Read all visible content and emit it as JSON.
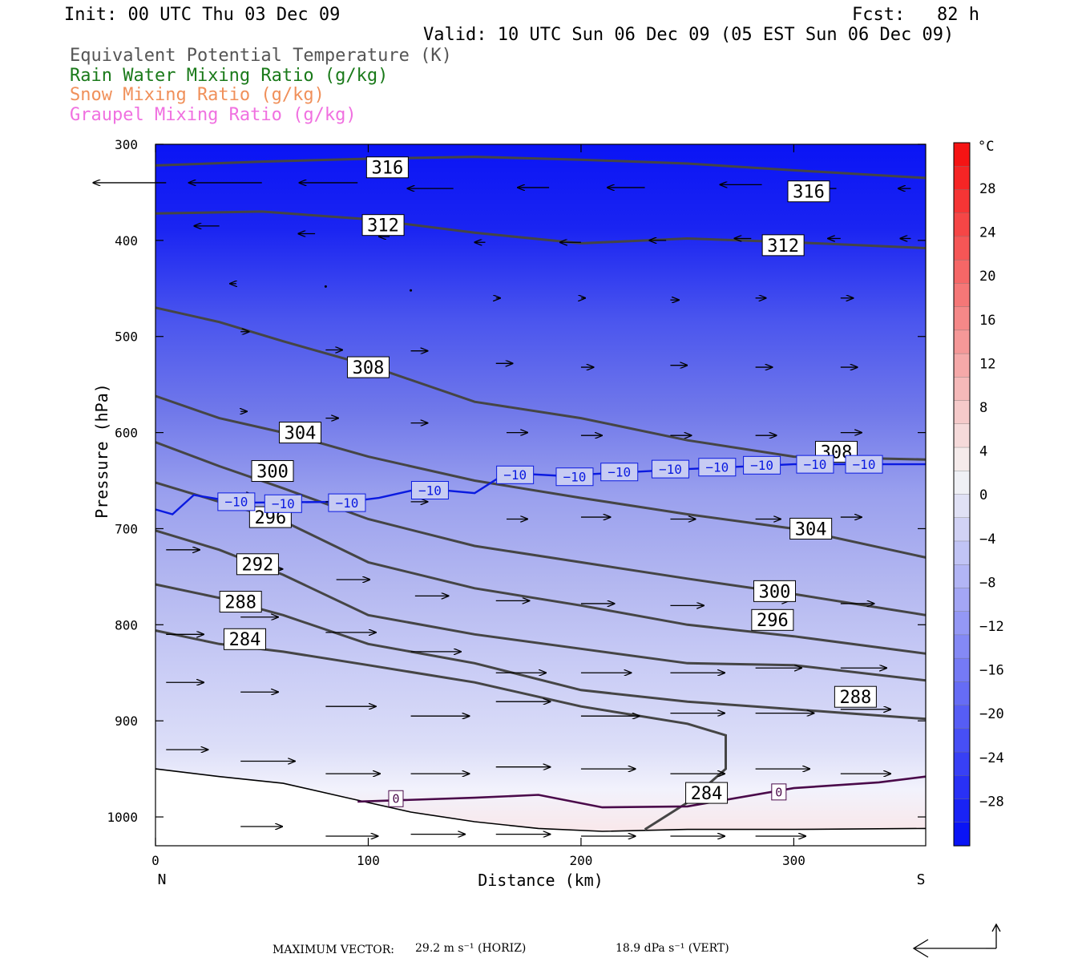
{
  "header": {
    "init": "Init: 00 UTC Thu 03 Dec 09",
    "fcst": "Fcst:   82 h",
    "valid": "Valid: 10 UTC Sun 06 Dec 09 (05 EST Sun 06 Dec 09)"
  },
  "legend": [
    {
      "label": "Equivalent Potential Temperature (K)",
      "color": "#555555"
    },
    {
      "label": "Rain Water Mixing Ratio (g/kg)",
      "color": "#1a7a1a"
    },
    {
      "label": "Snow Mixing Ratio (g/kg)",
      "color": "#f0905a"
    },
    {
      "label": "Graupel Mixing Ratio (g/kg)",
      "color": "#f070e0"
    }
  ],
  "footer": {
    "max_vector_label": "MAXIMUM VECTOR:",
    "horiz": "29.2 m s⁻¹ (HORIZ)",
    "vert": "18.9 dPa s⁻¹ (VERT)"
  },
  "chart_data": {
    "type": "contour",
    "xlabel": "Distance (km)",
    "ylabel": "Pressure (hPa)",
    "xlim": [
      0,
      362
    ],
    "ylim": [
      1030,
      300
    ],
    "xticks": [
      0,
      100,
      200,
      300
    ],
    "yticks": [
      300,
      400,
      500,
      600,
      700,
      800,
      900,
      1000
    ],
    "x_end_labels": {
      "left": "N",
      "right": "S"
    },
    "colorbar": {
      "unit": "°C",
      "ticks": [
        28,
        24,
        20,
        16,
        12,
        8,
        4,
        0,
        -4,
        -8,
        -12,
        -16,
        -20,
        -24,
        -28
      ]
    },
    "theta_e_contours": [
      {
        "level": 316,
        "points": [
          [
            0,
            322
          ],
          [
            50,
            318
          ],
          [
            100,
            315
          ],
          [
            150,
            313
          ],
          [
            200,
            316
          ],
          [
            250,
            320
          ],
          [
            300,
            327
          ],
          [
            362,
            335
          ]
        ],
        "labels": [
          [
            109,
            324
          ],
          [
            307,
            349
          ]
        ]
      },
      {
        "level": 312,
        "points": [
          [
            0,
            372
          ],
          [
            50,
            370
          ],
          [
            100,
            378
          ],
          [
            150,
            392
          ],
          [
            200,
            403
          ],
          [
            250,
            398
          ],
          [
            300,
            402
          ],
          [
            362,
            408
          ]
        ],
        "labels": [
          [
            107,
            384
          ],
          [
            295,
            405
          ]
        ]
      },
      {
        "level": 308,
        "points": [
          [
            0,
            470
          ],
          [
            30,
            485
          ],
          [
            60,
            505
          ],
          [
            100,
            530
          ],
          [
            150,
            568
          ],
          [
            200,
            585
          ],
          [
            250,
            608
          ],
          [
            300,
            625
          ],
          [
            362,
            628
          ]
        ],
        "labels": [
          [
            100,
            532
          ],
          [
            320,
            620
          ]
        ]
      },
      {
        "level": 304,
        "points": [
          [
            0,
            562
          ],
          [
            30,
            585
          ],
          [
            60,
            600
          ],
          [
            100,
            625
          ],
          [
            150,
            650
          ],
          [
            200,
            668
          ],
          [
            250,
            685
          ],
          [
            300,
            700
          ],
          [
            362,
            730
          ]
        ],
        "labels": [
          [
            68,
            600
          ],
          [
            308,
            700
          ]
        ]
      },
      {
        "level": 300,
        "points": [
          [
            0,
            610
          ],
          [
            30,
            635
          ],
          [
            60,
            658
          ],
          [
            100,
            690
          ],
          [
            150,
            718
          ],
          [
            200,
            735
          ],
          [
            250,
            752
          ],
          [
            300,
            768
          ],
          [
            362,
            790
          ]
        ],
        "labels": [
          [
            55,
            640
          ],
          [
            291,
            765
          ]
        ]
      },
      {
        "level": 296,
        "points": [
          [
            0,
            652
          ],
          [
            30,
            672
          ],
          [
            60,
            692
          ],
          [
            100,
            735
          ],
          [
            150,
            762
          ],
          [
            200,
            780
          ],
          [
            250,
            800
          ],
          [
            300,
            812
          ],
          [
            362,
            830
          ]
        ],
        "labels": [
          [
            54,
            688
          ],
          [
            290,
            795
          ]
        ]
      },
      {
        "level": 292,
        "points": [
          [
            0,
            702
          ],
          [
            30,
            722
          ],
          [
            60,
            748
          ],
          [
            100,
            790
          ],
          [
            150,
            810
          ],
          [
            200,
            825
          ],
          [
            250,
            840
          ],
          [
            300,
            842
          ],
          [
            362,
            858
          ]
        ],
        "labels": [
          [
            48,
            737
          ]
        ]
      },
      {
        "level": 288,
        "points": [
          [
            0,
            758
          ],
          [
            30,
            772
          ],
          [
            60,
            790
          ],
          [
            100,
            820
          ],
          [
            150,
            840
          ],
          [
            200,
            868
          ],
          [
            250,
            880
          ],
          [
            300,
            888
          ],
          [
            362,
            898
          ]
        ],
        "labels": [
          [
            40,
            776
          ],
          [
            329,
            875
          ]
        ]
      },
      {
        "level": 284,
        "points": [
          [
            0,
            806
          ],
          [
            30,
            820
          ],
          [
            60,
            828
          ],
          [
            100,
            842
          ],
          [
            150,
            860
          ],
          [
            200,
            885
          ],
          [
            250,
            903
          ],
          [
            268,
            915
          ],
          [
            268,
            950
          ],
          [
            250,
            985
          ],
          [
            230,
            1013
          ]
        ],
        "labels": [
          [
            42,
            815
          ],
          [
            259,
            975
          ]
        ]
      }
    ],
    "isotherm_minus10": {
      "level": -10,
      "points": [
        [
          0,
          680
        ],
        [
          8,
          685
        ],
        [
          18,
          665
        ],
        [
          40,
          673
        ],
        [
          90,
          672
        ],
        [
          105,
          668
        ],
        [
          125,
          658
        ],
        [
          150,
          663
        ],
        [
          165,
          642
        ],
        [
          190,
          645
        ],
        [
          250,
          638
        ],
        [
          300,
          633
        ],
        [
          362,
          633
        ]
      ],
      "labels": [
        [
          38,
          672
        ],
        [
          60,
          674
        ],
        [
          90,
          673
        ],
        [
          129,
          660
        ],
        [
          169,
          644
        ],
        [
          197,
          646
        ],
        [
          218,
          641
        ],
        [
          242,
          638
        ],
        [
          264,
          636
        ],
        [
          285,
          634
        ],
        [
          310,
          633
        ],
        [
          333,
          633
        ]
      ]
    },
    "isotherm_zero": {
      "level": 0,
      "points": [
        [
          95,
          984
        ],
        [
          150,
          980
        ],
        [
          180,
          977
        ],
        [
          210,
          990
        ],
        [
          250,
          989
        ],
        [
          300,
          970
        ],
        [
          340,
          964
        ],
        [
          362,
          958
        ]
      ],
      "labels": [
        [
          113,
          981
        ],
        [
          293,
          974
        ]
      ]
    },
    "terrain_surface": [
      [
        0,
        950
      ],
      [
        30,
        958
      ],
      [
        60,
        965
      ],
      [
        90,
        980
      ],
      [
        120,
        995
      ],
      [
        150,
        1005
      ],
      [
        180,
        1012
      ],
      [
        210,
        1015
      ],
      [
        250,
        1013
      ],
      [
        300,
        1013
      ],
      [
        362,
        1012
      ]
    ],
    "wind_vectors": [
      [
        5,
        340,
        -35,
        0
      ],
      [
        50,
        340,
        -35,
        0
      ],
      [
        95,
        340,
        -28,
        0
      ],
      [
        140,
        346,
        -22,
        0
      ],
      [
        185,
        345,
        -15,
        0
      ],
      [
        230,
        345,
        -18,
        0
      ],
      [
        285,
        342,
        -20,
        0
      ],
      [
        320,
        346,
        -8,
        0
      ],
      [
        355,
        346,
        -6,
        0
      ],
      [
        30,
        385,
        -12,
        0
      ],
      [
        75,
        393,
        -8,
        0
      ],
      [
        110,
        396,
        -5,
        0
      ],
      [
        155,
        402,
        -5,
        0
      ],
      [
        200,
        402,
        -10,
        0
      ],
      [
        240,
        400,
        -8,
        0
      ],
      [
        280,
        398,
        -8,
        0
      ],
      [
        322,
        398,
        -6,
        0
      ],
      [
        355,
        398,
        -5,
        0
      ],
      [
        38,
        445,
        -3,
        0
      ],
      [
        80,
        448,
        0,
        0
      ],
      [
        120,
        452,
        0,
        0
      ],
      [
        160,
        460,
        2,
        0
      ],
      [
        200,
        460,
        2,
        0
      ],
      [
        242,
        462,
        4,
        0
      ],
      [
        282,
        460,
        5,
        0
      ],
      [
        322,
        460,
        6,
        0
      ],
      [
        40,
        495,
        4,
        0
      ],
      [
        80,
        514,
        8,
        0
      ],
      [
        120,
        515,
        8,
        0
      ],
      [
        160,
        528,
        8,
        0
      ],
      [
        200,
        532,
        6,
        0
      ],
      [
        242,
        530,
        8,
        0
      ],
      [
        282,
        532,
        8,
        0
      ],
      [
        322,
        532,
        8,
        0
      ],
      [
        40,
        578,
        3,
        0
      ],
      [
        80,
        585,
        6,
        0
      ],
      [
        120,
        590,
        8,
        0
      ],
      [
        165,
        600,
        10,
        0
      ],
      [
        200,
        603,
        10,
        0
      ],
      [
        242,
        603,
        10,
        0
      ],
      [
        282,
        603,
        10,
        0
      ],
      [
        322,
        600,
        10,
        0
      ],
      [
        40,
        665,
        6,
        0
      ],
      [
        80,
        672,
        8,
        0
      ],
      [
        120,
        672,
        8,
        0
      ],
      [
        165,
        690,
        10,
        0
      ],
      [
        200,
        688,
        14,
        0
      ],
      [
        242,
        690,
        12,
        0
      ],
      [
        282,
        690,
        12,
        0
      ],
      [
        322,
        688,
        10,
        0
      ],
      [
        5,
        722,
        16,
        0
      ],
      [
        45,
        742,
        15,
        0
      ],
      [
        85,
        753,
        16,
        0
      ],
      [
        122,
        770,
        16,
        0
      ],
      [
        160,
        775,
        16,
        0
      ],
      [
        200,
        778,
        16,
        0
      ],
      [
        242,
        780,
        16,
        0
      ],
      [
        282,
        775,
        16,
        0
      ],
      [
        322,
        778,
        16,
        0
      ],
      [
        5,
        810,
        18,
        0
      ],
      [
        40,
        792,
        18,
        0
      ],
      [
        80,
        808,
        24,
        0
      ],
      [
        120,
        828,
        24,
        0
      ],
      [
        160,
        850,
        24,
        0
      ],
      [
        200,
        850,
        24,
        0
      ],
      [
        242,
        850,
        26,
        0
      ],
      [
        282,
        845,
        22,
        0
      ],
      [
        322,
        845,
        22,
        0
      ],
      [
        5,
        860,
        18,
        0
      ],
      [
        40,
        870,
        18,
        0
      ],
      [
        80,
        885,
        24,
        0
      ],
      [
        120,
        895,
        28,
        0
      ],
      [
        160,
        880,
        26,
        0
      ],
      [
        200,
        895,
        28,
        0
      ],
      [
        242,
        892,
        26,
        0
      ],
      [
        282,
        892,
        28,
        0
      ],
      [
        322,
        888,
        24,
        0
      ],
      [
        5,
        930,
        20,
        0
      ],
      [
        40,
        942,
        26,
        0
      ],
      [
        80,
        955,
        26,
        0
      ],
      [
        120,
        955,
        28,
        0
      ],
      [
        160,
        948,
        26,
        0
      ],
      [
        200,
        950,
        26,
        0
      ],
      [
        242,
        955,
        26,
        0
      ],
      [
        282,
        950,
        26,
        0
      ],
      [
        322,
        955,
        24,
        0
      ],
      [
        40,
        1010,
        20,
        0
      ],
      [
        80,
        1020,
        25,
        0
      ],
      [
        120,
        1018,
        26,
        0
      ],
      [
        160,
        1018,
        26,
        0
      ],
      [
        200,
        1020,
        26,
        0
      ],
      [
        242,
        1020,
        26,
        0
      ],
      [
        282,
        1020,
        24,
        0
      ]
    ],
    "background_shading_note": "blue (cold) aloft to white/pink (warm) near surface"
  }
}
